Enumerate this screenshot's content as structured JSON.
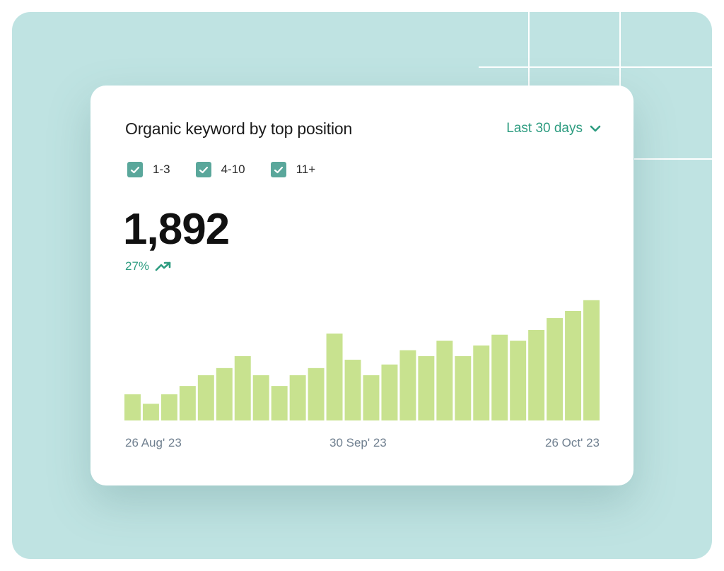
{
  "card": {
    "title": "Organic keyword by top position",
    "range_label": "Last 30 days",
    "range_icon": "chevron-down-icon",
    "filters": [
      {
        "label": "1-3",
        "checked": true
      },
      {
        "label": "4-10",
        "checked": true
      },
      {
        "label": "11+",
        "checked": true
      }
    ],
    "total": "1,892",
    "change": "27%",
    "change_icon": "trend-up-icon"
  },
  "colors": {
    "accent": "#2d9c80",
    "bar": "#c8e28f",
    "checkbox": "#5aa79b",
    "backdrop": "#bfe3e2"
  },
  "chart_data": {
    "type": "bar",
    "title": "",
    "x_labels": [
      "26 Aug' 23",
      "30 Sep' 23",
      "26 Oct' 23"
    ],
    "values": [
      22,
      14,
      22,
      29,
      38,
      44,
      54,
      38,
      29,
      38,
      44,
      73,
      51,
      38,
      47,
      59,
      54,
      67,
      54,
      63,
      72,
      67,
      76,
      86,
      92,
      101
    ],
    "ylim": [
      0,
      108
    ],
    "grid": false,
    "legend": "none"
  }
}
